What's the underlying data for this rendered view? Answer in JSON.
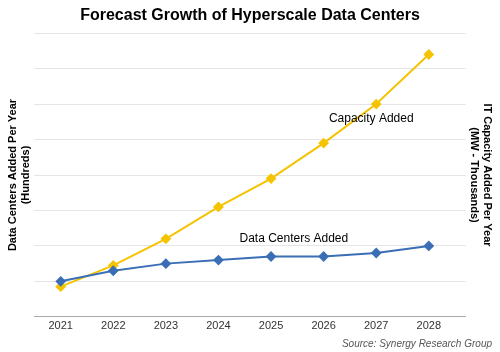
{
  "chart_data": {
    "type": "line",
    "title": "Forecast Growth of Hyperscale Data Centers",
    "x": [
      2021,
      2022,
      2023,
      2024,
      2025,
      2026,
      2027,
      2028
    ],
    "xlim": [
      2020.5,
      2028.7
    ],
    "xticks": [
      2021,
      2022,
      2023,
      2024,
      2025,
      2026,
      2027,
      2028
    ],
    "series": [
      {
        "color": "#3a6eb5",
        "marker": "diamond",
        "values": [
          1.0,
          1.3,
          1.5,
          1.6,
          1.7,
          1.7,
          1.8,
          2.0
        ]
      },
      {
        "color": "#f5c300",
        "marker": "diamond",
        "axis": "y2",
        "values": [
          0.85,
          1.45,
          2.2,
          3.1,
          3.9,
          4.9,
          6.0,
          7.4
        ]
      }
    ],
    "ylim": [
      0,
      8
    ],
    "yticks": [
      0,
      1,
      2,
      3,
      4,
      5,
      6,
      7,
      8
    ],
    "y2lim": [
      0,
      8
    ],
    "y2ticks": [
      0,
      1,
      2,
      3,
      4,
      5,
      6,
      7,
      8
    ],
    "ylabel": [
      "Data Centers Added Per Year",
      "(Hundreds)"
    ],
    "y2label": [
      "IT Capacity Added Per Year",
      "(MW - Thousands)"
    ],
    "grid": true,
    "tick_labels": "x",
    "annotations": [
      {
        "text": "Capacity Added",
        "x": 2026.1,
        "y": 5.5
      },
      {
        "text": "Data Centers Added",
        "x": 2024.4,
        "y": 2.1
      }
    ],
    "source": "Source: Synergy Research Group"
  }
}
